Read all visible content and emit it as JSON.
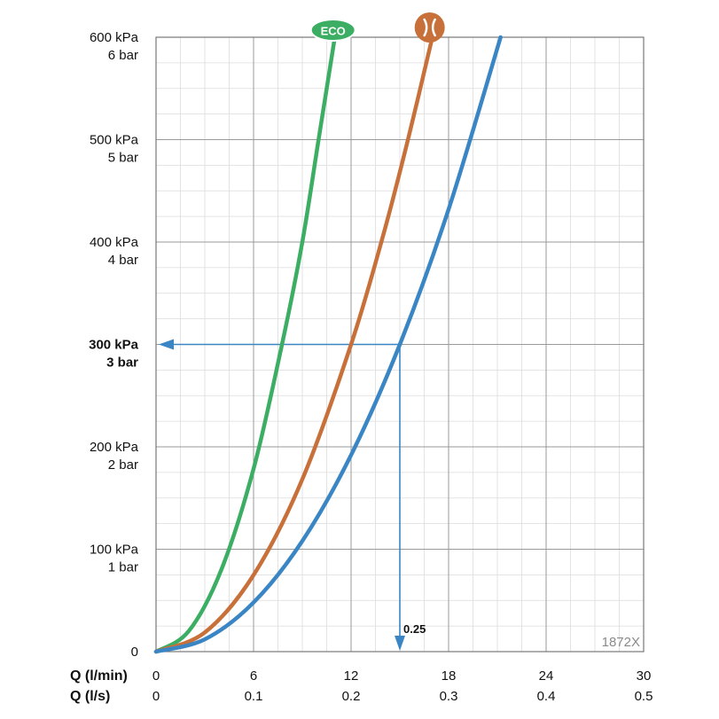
{
  "chart_data": {
    "type": "line",
    "y_ticks": [
      {
        "value": 0,
        "kpa": "0",
        "bar": "",
        "bold": false
      },
      {
        "value": 100,
        "kpa": "100 kPa",
        "bar": "1 bar",
        "bold": false
      },
      {
        "value": 200,
        "kpa": "200 kPa",
        "bar": "2 bar",
        "bold": false
      },
      {
        "value": 300,
        "kpa": "300 kPa",
        "bar": "3 bar",
        "bold": true
      },
      {
        "value": 400,
        "kpa": "400 kPa",
        "bar": "4 bar",
        "bold": false
      },
      {
        "value": 500,
        "kpa": "500 kPa",
        "bar": "5 bar",
        "bold": false
      },
      {
        "value": 600,
        "kpa": "600 kPa",
        "bar": "6 bar",
        "bold": false
      }
    ],
    "ylim": [
      0,
      600
    ],
    "xlim": [
      0,
      30
    ],
    "x_axis_lpm": {
      "title": "Q (l/min)",
      "ticks": [
        0,
        6,
        12,
        18,
        24,
        30
      ],
      "labels": [
        "0",
        "6",
        "12",
        "18",
        "24",
        "30"
      ]
    },
    "x_axis_ls": {
      "title": "Q (l/s)",
      "labels": [
        "0",
        "0.1",
        "0.2",
        "0.3",
        "0.4",
        "0.5"
      ]
    },
    "grid": true,
    "series": [
      {
        "name": "ECO",
        "marker": "eco",
        "color": "#3cae63",
        "x": [
          0,
          2,
          4,
          6,
          7.75,
          9,
          10,
          11
        ],
        "y": [
          0,
          19.8,
          79.3,
          178.5,
          300,
          400,
          500,
          600
        ]
      },
      {
        "name": "",
        "marker": "orange-symbol",
        "color": "#c8703a",
        "x": [
          0,
          3,
          6,
          9,
          12,
          14,
          15.5,
          17
        ],
        "y": [
          0,
          18.7,
          74.8,
          168.3,
          300,
          408,
          500,
          600
        ]
      },
      {
        "name": "",
        "marker": "",
        "color": "#3a86c4",
        "x": [
          0,
          3,
          6,
          9,
          12,
          15,
          18,
          21.2
        ],
        "y": [
          0,
          12,
          48,
          108,
          192,
          300,
          432,
          600
        ]
      }
    ],
    "reference": {
      "x": 15,
      "y": 300,
      "label": "0.25",
      "color": "#3a86c4"
    },
    "eco_label": "ECO",
    "code": "1872X"
  }
}
